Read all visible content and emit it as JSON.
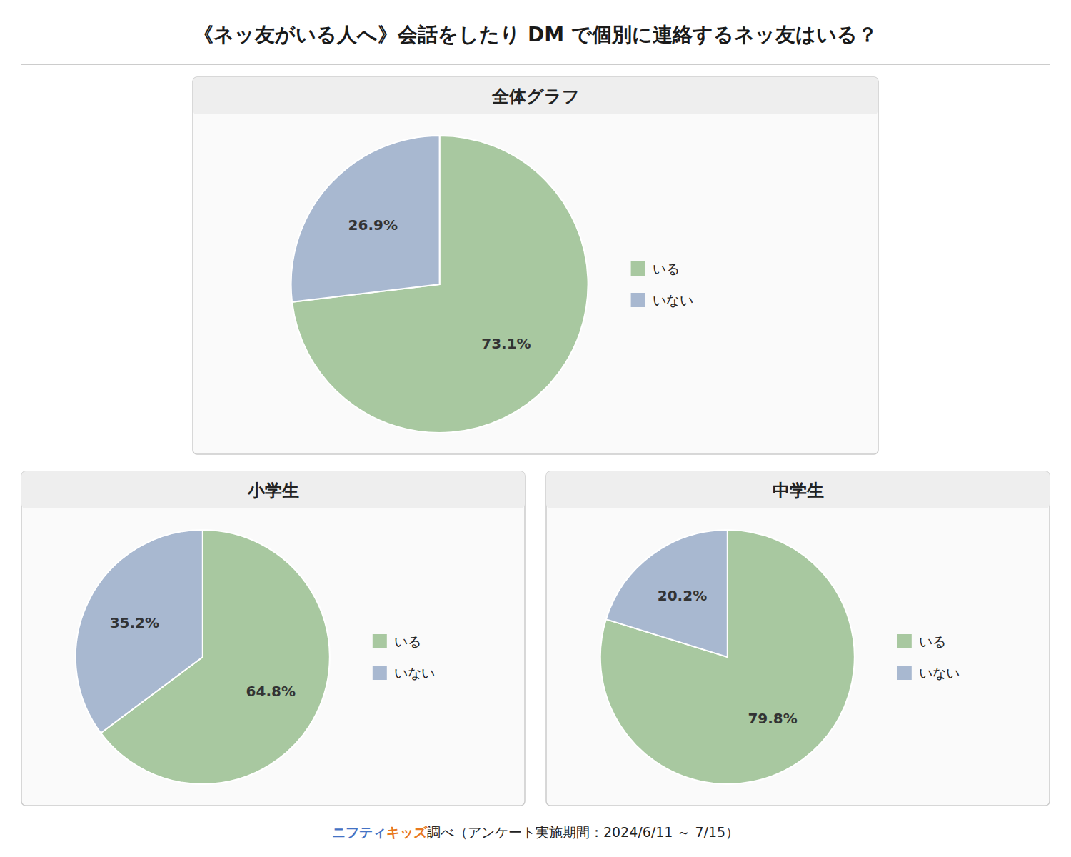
{
  "title": "《ネッ友がいる人へ》会話をしたり DM で個別に連絡するネッ友はいる？",
  "annotations": [
    {
      "text": "ニフティ",
      "color": "#4472c4"
    },
    {
      "text": "キッズ",
      "color": "#e87820"
    },
    {
      "text": "調べ（アンケート実施期間：2024/6/11 ～ 7/15）",
      "color": "#222222"
    }
  ],
  "chart_data": [
    {
      "type": "pie",
      "title": "全体グラフ",
      "categories": [
        "いる",
        "いない"
      ],
      "values": [
        73.1,
        26.9
      ],
      "value_labels": [
        "73.1%",
        "26.9%"
      ],
      "colors": [
        "#a8c8a0",
        "#a8b8d0"
      ],
      "data_labels": true,
      "legend": "right"
    },
    {
      "type": "pie",
      "title": "小学生",
      "categories": [
        "いる",
        "いない"
      ],
      "values": [
        64.8,
        35.2
      ],
      "value_labels": [
        "64.8%",
        "35.2%"
      ],
      "colors": [
        "#a8c8a0",
        "#a8b8d0"
      ],
      "data_labels": true,
      "legend": "right"
    },
    {
      "type": "pie",
      "title": "中学生",
      "categories": [
        "いる",
        "いない"
      ],
      "values": [
        79.8,
        20.2
      ],
      "value_labels": [
        "79.8%",
        "20.2%"
      ],
      "colors": [
        "#a8c8a0",
        "#a8b8d0"
      ],
      "data_labels": true,
      "legend": "right"
    }
  ]
}
